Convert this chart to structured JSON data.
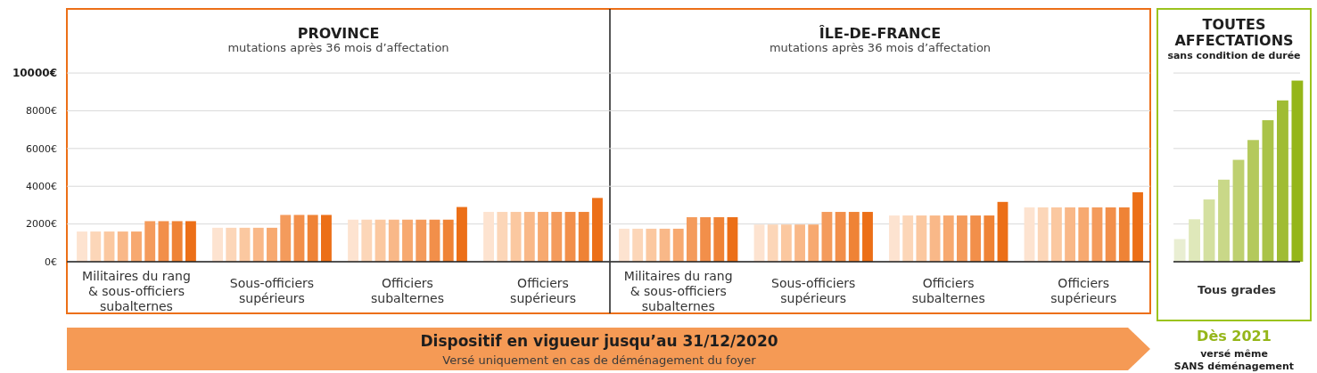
{
  "chart_data": [
    {
      "type": "bar",
      "title": "PROVINCE",
      "subtitle": "mutations après 36 mois d’affectation",
      "categories": [
        "Militaires du rang & sous-officiers subalternes",
        "Sous-officiers supérieurs",
        "Officiers subalternes",
        "Officiers supérieurs"
      ],
      "series": [
        {
          "color": "#fde3d0",
          "values": [
            1600,
            1800,
            2230,
            2640
          ]
        },
        {
          "color": "#fcd6b8",
          "values": [
            1600,
            1800,
            2230,
            2640
          ]
        },
        {
          "color": "#fbc8a0",
          "values": [
            1600,
            1800,
            2230,
            2640
          ]
        },
        {
          "color": "#f9b888",
          "values": [
            1600,
            1800,
            2230,
            2640
          ]
        },
        {
          "color": "#f7a970",
          "values": [
            1600,
            1800,
            2230,
            2640
          ]
        },
        {
          "color": "#f49b5c",
          "values": [
            2150,
            2480,
            2230,
            2640
          ]
        },
        {
          "color": "#f28f4a",
          "values": [
            2150,
            2480,
            2230,
            2640
          ]
        },
        {
          "color": "#ef8336",
          "values": [
            2150,
            2480,
            2230,
            2640
          ]
        },
        {
          "color": "#ec6f17",
          "values": [
            2150,
            2480,
            2900,
            3380
          ]
        }
      ],
      "ylim": [
        0,
        13400
      ],
      "yticks": [
        {
          "value": 0,
          "label": "0€"
        },
        {
          "value": 2000,
          "label": "2000€"
        },
        {
          "value": 4000,
          "label": "4000€"
        },
        {
          "value": 6000,
          "label": "6000€"
        },
        {
          "value": 8000,
          "label": "8000€"
        },
        {
          "value": 10000,
          "label": "10000€"
        }
      ],
      "grid": "y",
      "annotations": [
        "Dispositif en vigueur jusqu’au 31/12/2020",
        "Versé uniquement en cas de déménagement du foyer"
      ]
    },
    {
      "type": "bar",
      "title": "ÎLE-DE-FRANCE",
      "subtitle": "mutations après 36 mois d’affectation",
      "categories": [
        "Militaires du rang & sous-officiers subalternes",
        "Sous-officiers supérieurs",
        "Officiers subalternes",
        "Officiers supérieurs"
      ],
      "series": [
        {
          "color": "#fde3d0",
          "values": [
            1750,
            1970,
            2450,
            2880
          ]
        },
        {
          "color": "#fcd6b8",
          "values": [
            1750,
            1970,
            2450,
            2880
          ]
        },
        {
          "color": "#fbc8a0",
          "values": [
            1750,
            1970,
            2450,
            2880
          ]
        },
        {
          "color": "#f9b888",
          "values": [
            1750,
            1970,
            2450,
            2880
          ]
        },
        {
          "color": "#f7a970",
          "values": [
            1750,
            1970,
            2450,
            2880
          ]
        },
        {
          "color": "#f49b5c",
          "values": [
            2360,
            2640,
            2450,
            2880
          ]
        },
        {
          "color": "#f28f4a",
          "values": [
            2360,
            2640,
            2450,
            2880
          ]
        },
        {
          "color": "#ef8336",
          "values": [
            2360,
            2640,
            2450,
            2880
          ]
        },
        {
          "color": "#ec6f17",
          "values": [
            2360,
            2640,
            3170,
            3680
          ]
        }
      ],
      "ylim": [
        0,
        13400
      ],
      "yticks": [
        {
          "value": 0,
          "label": null
        },
        {
          "value": 2000,
          "label": null
        },
        {
          "value": 4000,
          "label": null
        },
        {
          "value": 6000,
          "label": null
        },
        {
          "value": 8000,
          "label": null
        },
        {
          "value": 10000,
          "label": null
        }
      ],
      "grid": "y",
      "tick_labels": "x"
    },
    {
      "type": "bar",
      "title": "TOUTES AFFECTATIONS",
      "subtitle": "sans condition de durée",
      "xlabel": "Tous grades",
      "categories": [
        null,
        null,
        null,
        null,
        null,
        null,
        null,
        null,
        null
      ],
      "values": [
        1200,
        2250,
        3300,
        4350,
        5400,
        6450,
        7500,
        8550,
        9600
      ],
      "colors": [
        "#e9eed2",
        "#dfe8ba",
        "#d4e0a0",
        "#c9d888",
        "#bed070",
        "#b4c95c",
        "#aac348",
        "#a0bc34",
        "#95b619"
      ],
      "ylim": [
        0,
        13400
      ],
      "yticks": [
        {
          "value": 0,
          "label": null
        },
        {
          "value": 2000,
          "label": null
        },
        {
          "value": 4000,
          "label": null
        },
        {
          "value": 6000,
          "label": null
        },
        {
          "value": 8000,
          "label": null
        },
        {
          "value": 10000,
          "label": null
        }
      ],
      "grid": "y",
      "tick_labels": "x",
      "annotations": [
        "Dès 2021",
        "versé même",
        "SANS déménagement"
      ]
    }
  ]
}
